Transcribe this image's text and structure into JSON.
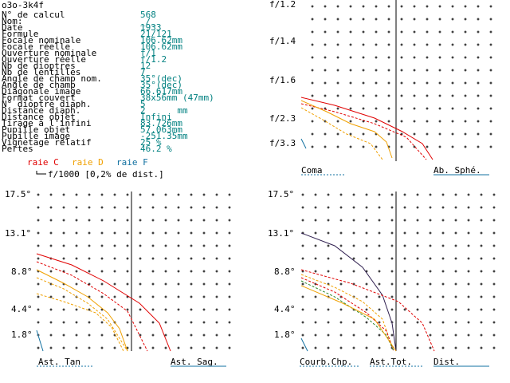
{
  "title": "o3o-3k4f",
  "info": {
    "rows": [
      {
        "label": "N° de calcul",
        "value": "568"
      },
      {
        "label": "Nom:",
        "value": "_/_"
      },
      {
        "label": "Date",
        "value": "1933"
      },
      {
        "label": "Formule",
        "value": "21/121"
      },
      {
        "label": "Focale nominale",
        "value": "106.62mm"
      },
      {
        "label": "Focale réelle",
        "value": "106.62mm"
      },
      {
        "label": "Ouverture nominale",
        "value": "f/1"
      },
      {
        "label": "Ouverture réelle",
        "value": "f/1.2"
      },
      {
        "label": "Nb de dioptres",
        "value": "12"
      },
      {
        "label": "Nb de lentilles",
        "value": "7"
      },
      {
        "label": "Angle de champ nom.",
        "value": "35°(dec)"
      },
      {
        "label": "Angle de champ",
        "value": "35°(dec)"
      },
      {
        "label": "Diagonale image",
        "value": "66.617mm"
      },
      {
        "label": "Format couvert",
        "value": "38x56mm (47mm)"
      },
      {
        "label": "N° dioptre diaph.",
        "value": "5"
      },
      {
        "label": "Distance diaph.",
        "value": "2      mm"
      },
      {
        "label": "Distance objet",
        "value": "Infini"
      },
      {
        "label": "Tirage à l'infini",
        "value": "83.726mm"
      },
      {
        "label": "Pupille objet",
        "value": "57.063mm"
      },
      {
        "label": "Pupille image",
        "value": "-251.35mm"
      },
      {
        "label": "Vignetage relatif",
        "value": "25 %"
      },
      {
        "label": "Pertes",
        "value": "46.2 %"
      }
    ]
  },
  "legend": {
    "raie_c": "raie C",
    "raie_d": "raie D",
    "raie_f": "raie F",
    "scale_note": "f/1000 [0,2% de dist.]"
  },
  "colors": {
    "c": "#e00000",
    "d": "#f0a000",
    "f": "#1070a0",
    "value": "#008080"
  },
  "top_right_panel": {
    "y_labels": [
      "f/1.2",
      "f/1.4",
      "f/1.6",
      "f/2.3",
      "f/3.3"
    ],
    "tab_left": "Coma",
    "tab_right": "Ab. Sphé."
  },
  "bottom_left_panel": {
    "y_labels": [
      "17.5°",
      "13.1°",
      "8.8°",
      "4.4°",
      "1.8°"
    ],
    "tab_left": "Ast. Tan",
    "tab_right": "Ast. Sag."
  },
  "bottom_right_panel": {
    "y_labels": [
      "17.5°",
      "13.1°",
      "8.8°",
      "4.4°",
      "1.8°"
    ],
    "tab_1": "Courb.Chp.",
    "tab_2": "Ast.Tot.",
    "tab_3": "Dist."
  }
}
